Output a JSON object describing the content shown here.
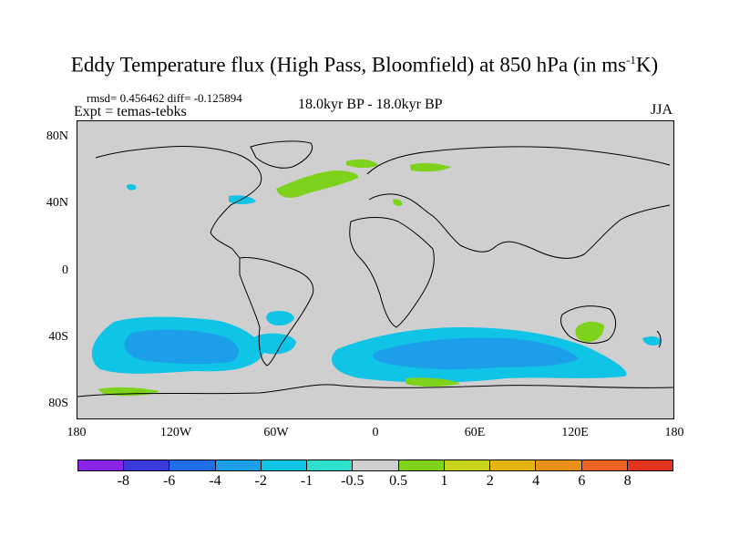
{
  "title": {
    "main": "Eddy Temperature flux (High Pass, Bloomfield) at 850 hPa (in ms",
    "sup": "-1",
    "end": "K)"
  },
  "stats": "rmsd= 0.456462 diff= -0.125894",
  "expt": "Expt = temas-tebks",
  "period": "18.0kyr BP - 18.0kyr BP",
  "season": "JJA",
  "lat_ticks": [
    "80N",
    "40N",
    "0",
    "40S",
    "80S"
  ],
  "lon_ticks": [
    "180",
    "120W",
    "60W",
    "0",
    "60E",
    "120E",
    "180"
  ],
  "colorbar": {
    "colors": [
      "#8a24e8",
      "#3a3ad8",
      "#1f6ee8",
      "#1c9ee8",
      "#10c4e6",
      "#2ee0cc",
      "#cfcfcf",
      "#7ed21c",
      "#c8d41c",
      "#e4b414",
      "#e8901a",
      "#e86420",
      "#e0341c"
    ],
    "labels": [
      "-8",
      "-6",
      "-4",
      "-2",
      "-1",
      "-0.5",
      "0.5",
      "1",
      "2",
      "4",
      "6",
      "8"
    ]
  },
  "colors": {
    "background": "#cfcfcf",
    "light_cyan": "#10c4e6",
    "cyan_blue": "#1c9ee8",
    "green": "#7ed21c"
  }
}
